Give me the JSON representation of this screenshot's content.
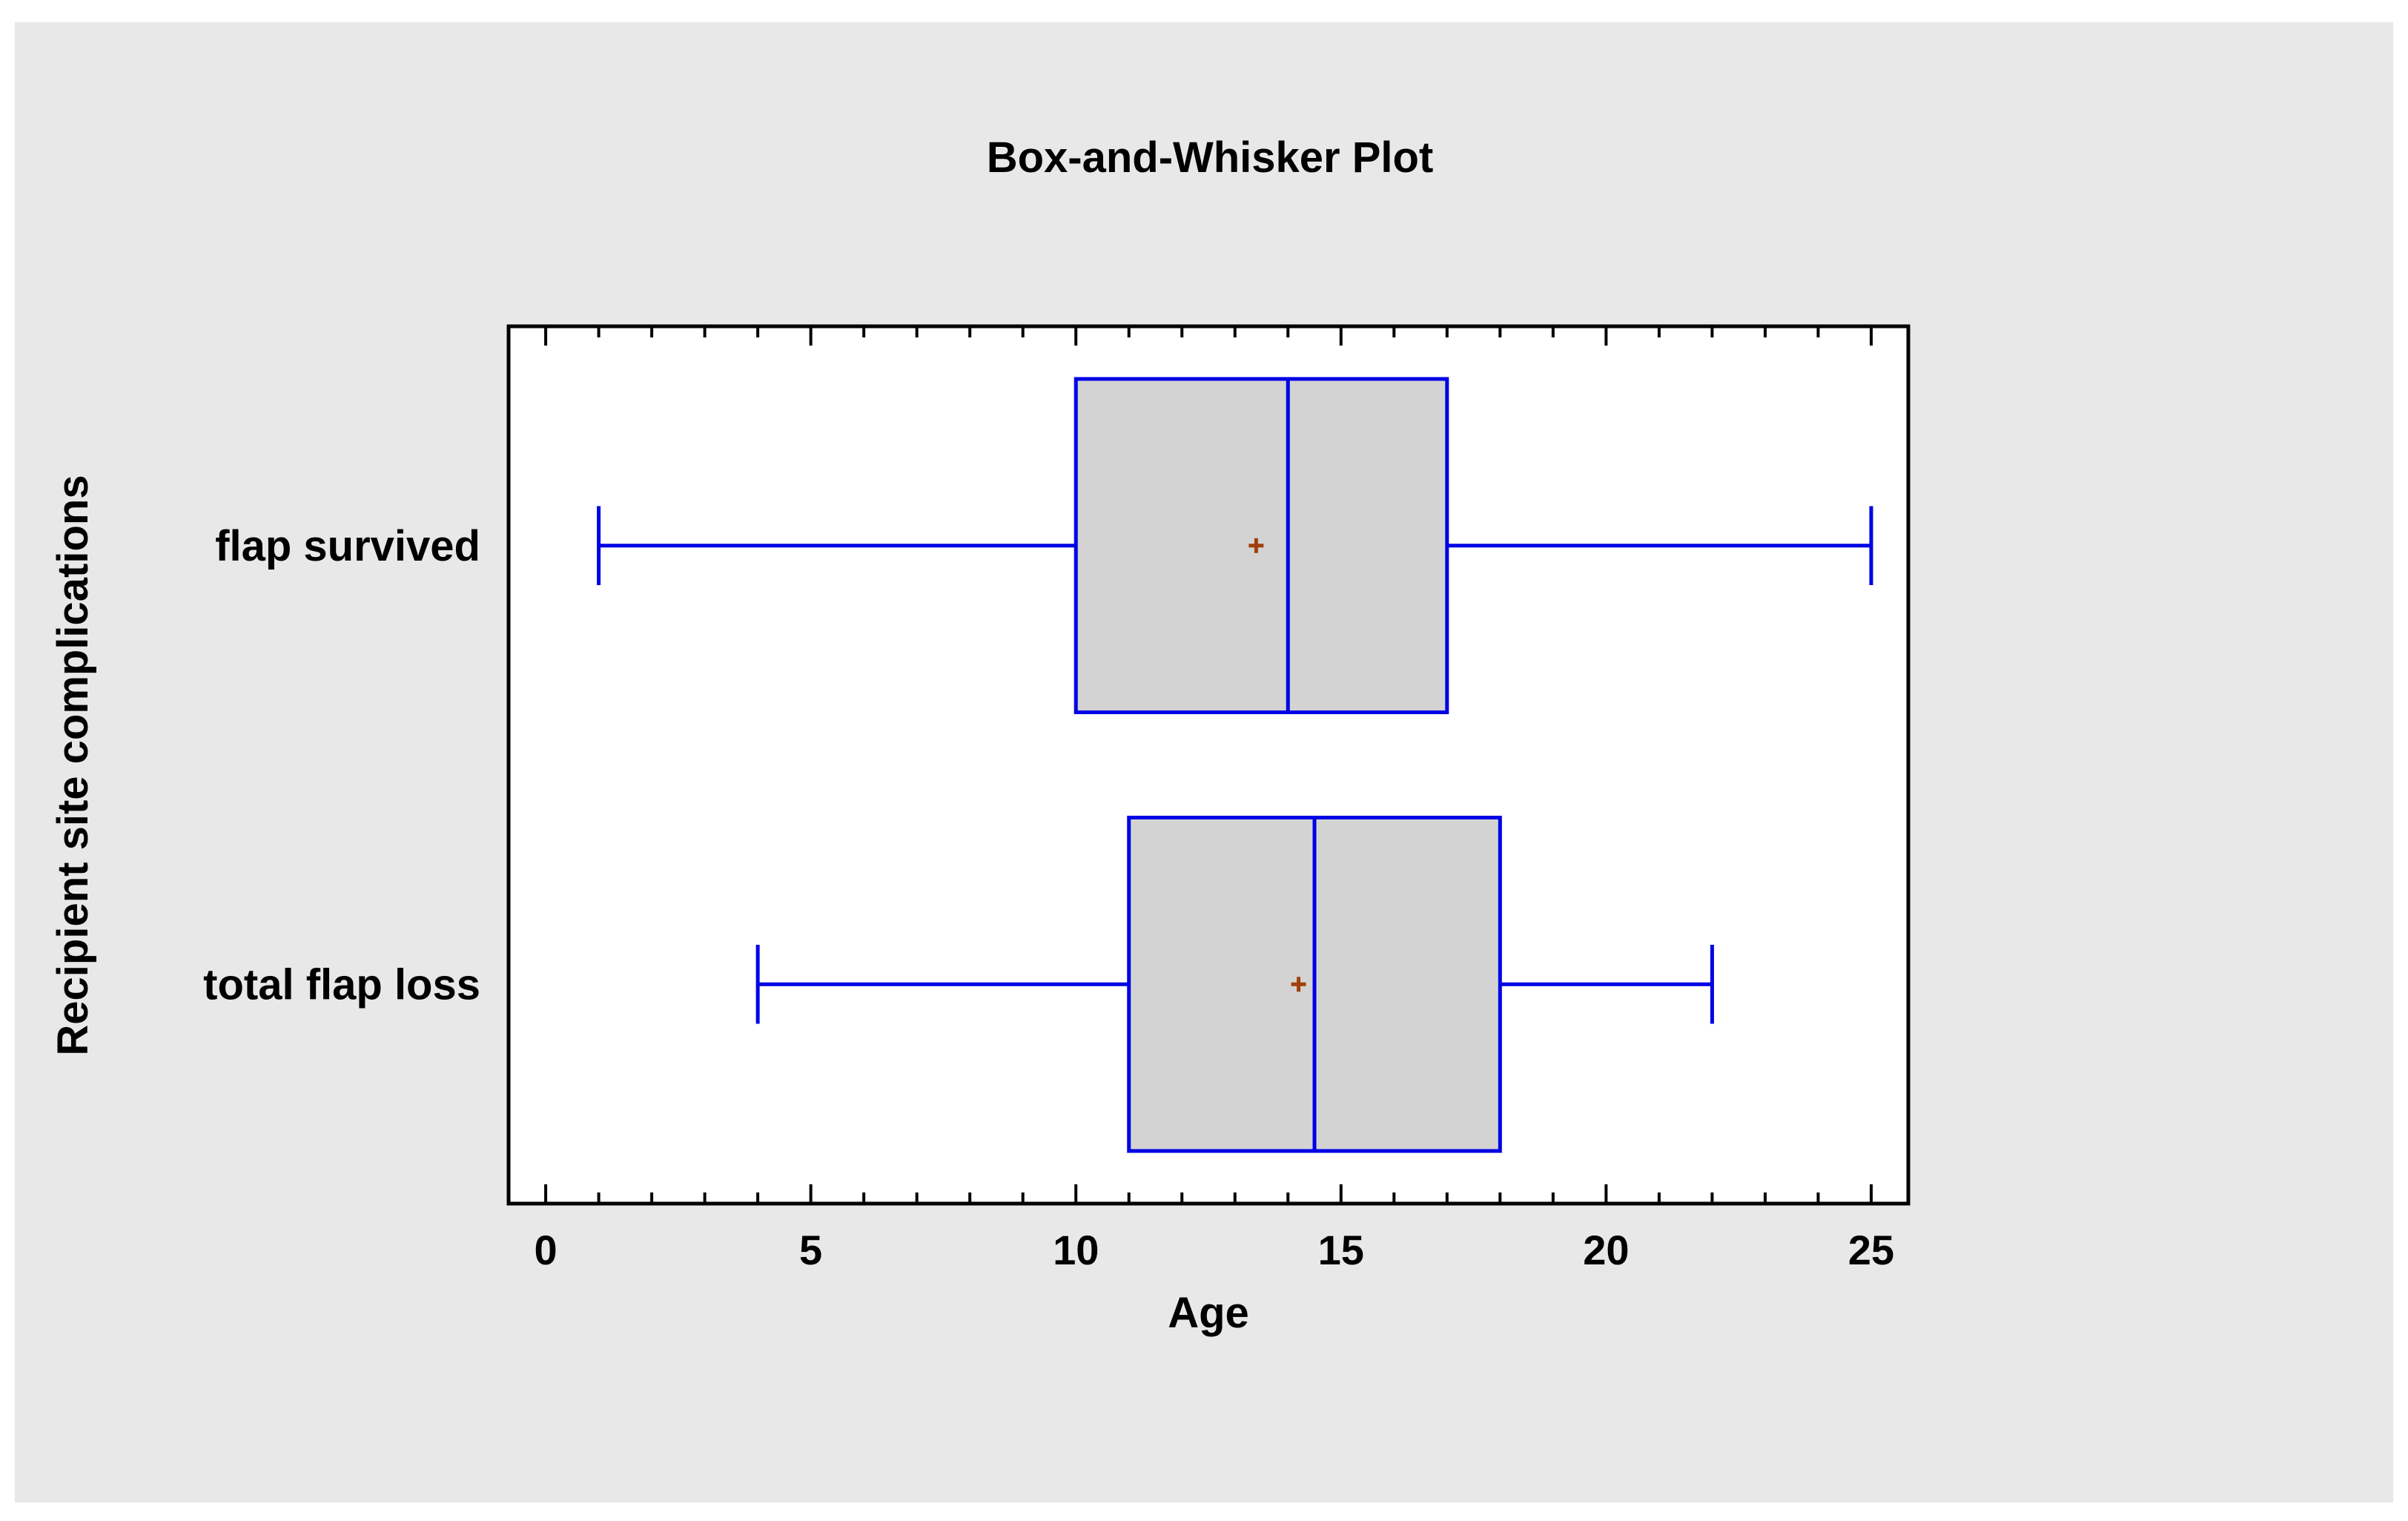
{
  "chart_data": {
    "type": "box",
    "orientation": "horizontal",
    "title": "Box-and-Whisker Plot",
    "xlabel": "Age",
    "ylabel": "Recipient site complications",
    "xlim": [
      -0.7,
      25.7
    ],
    "xticks": [
      0,
      5,
      10,
      15,
      20,
      25
    ],
    "minor_tick_step": 1,
    "grid": false,
    "categories": [
      "flap survived",
      "total flap loss"
    ],
    "boxes": [
      {
        "category": "flap survived",
        "min": 1,
        "q1": 10,
        "median": 14,
        "q3": 17,
        "max": 25,
        "mean": 13.4
      },
      {
        "category": "total flap loss",
        "min": 4,
        "q1": 11,
        "median": 14.5,
        "q3": 18,
        "max": 22,
        "mean": 14.2
      }
    ],
    "colors": {
      "box_edge": "#0000e6",
      "box_fill": "#d3d3d3",
      "mean_marker": "#a0400a",
      "outer_background": "#e8e8e8",
      "plot_background": "#ffffff"
    }
  }
}
